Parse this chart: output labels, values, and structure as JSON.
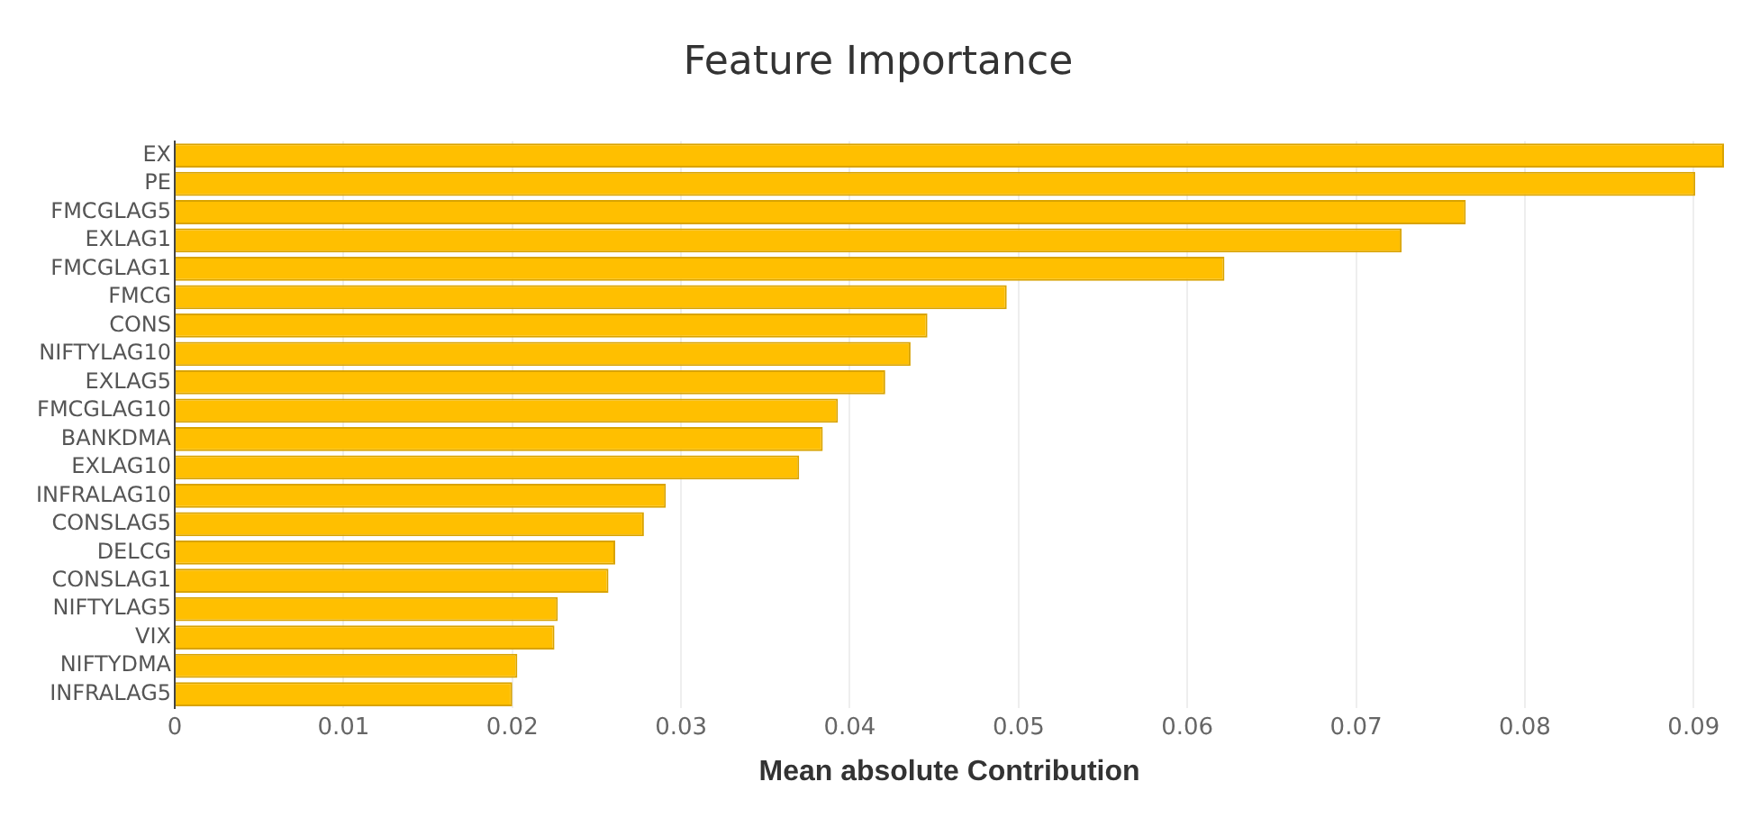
{
  "chart_data": {
    "type": "bar",
    "orientation": "horizontal",
    "title": "Feature Importance",
    "xlabel": "Mean absolute Contribution",
    "categories": [
      "EX",
      "PE",
      "FMCGLAG5",
      "EXLAG1",
      "FMCGLAG1",
      "FMCG",
      "CONS",
      "NIFTYLAG10",
      "EXLAG5",
      "FMCGLAG10",
      "BANKDMA",
      "EXLAG10",
      "INFRALAG10",
      "CONSLAG5",
      "DELCG",
      "CONSLAG1",
      "NIFTYLAG5",
      "VIX",
      "NIFTYDMA",
      "INFRALAG5"
    ],
    "values": [
      0.0918,
      0.0901,
      0.0765,
      0.0727,
      0.0622,
      0.0493,
      0.0446,
      0.0436,
      0.0421,
      0.0393,
      0.0384,
      0.037,
      0.0291,
      0.0278,
      0.0261,
      0.0257,
      0.0227,
      0.0225,
      0.0203,
      0.02
    ],
    "color": "#ffbf00",
    "xlim": [
      0,
      0.0918
    ],
    "xticks": [
      0,
      0.01,
      0.02,
      0.03,
      0.04,
      0.05,
      0.06,
      0.07,
      0.08,
      0.09
    ],
    "grid": "x",
    "legend": false
  }
}
